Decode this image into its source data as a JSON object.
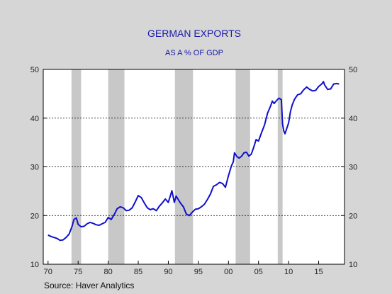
{
  "chart_data": {
    "type": "line",
    "title": "GERMAN EXPORTS",
    "subtitle": "AS A % OF GDP",
    "source": "Source: Haver Analytics",
    "x_range": [
      1970,
      2017.5
    ],
    "ylim": [
      10,
      50
    ],
    "y_ticks": [
      10,
      20,
      30,
      40,
      50
    ],
    "x_tick_values": [
      1970,
      1975,
      1980,
      1985,
      1990,
      1995,
      2000,
      2005,
      2010,
      2015
    ],
    "x_tick_labels": [
      "70",
      "75",
      "80",
      "85",
      "90",
      "95",
      "00",
      "05",
      "10",
      "15"
    ],
    "gridlines_at": [
      20,
      30,
      40
    ],
    "grid_style": "dotted-horizontal",
    "right_axis_mirrors_left": true,
    "recessions": [
      [
        1973.9,
        1975.5
      ],
      [
        1980.0,
        1982.7
      ],
      [
        1991.1,
        1994.1
      ],
      [
        2001.2,
        2003.6
      ],
      [
        2008.2,
        2009.0
      ]
    ],
    "series": [
      {
        "color": "#1010cc",
        "points": [
          [
            1970.0,
            16.0
          ],
          [
            1970.5,
            15.7
          ],
          [
            1971.0,
            15.5
          ],
          [
            1971.5,
            15.3
          ],
          [
            1972.0,
            14.9
          ],
          [
            1972.5,
            15.0
          ],
          [
            1973.0,
            15.5
          ],
          [
            1973.5,
            16.2
          ],
          [
            1974.0,
            17.8
          ],
          [
            1974.3,
            19.2
          ],
          [
            1974.7,
            19.5
          ],
          [
            1975.0,
            18.2
          ],
          [
            1975.5,
            17.7
          ],
          [
            1976.0,
            17.8
          ],
          [
            1976.5,
            18.3
          ],
          [
            1977.0,
            18.6
          ],
          [
            1977.5,
            18.4
          ],
          [
            1978.0,
            18.1
          ],
          [
            1978.5,
            18.0
          ],
          [
            1979.0,
            18.3
          ],
          [
            1979.5,
            18.6
          ],
          [
            1980.0,
            19.6
          ],
          [
            1980.5,
            19.2
          ],
          [
            1981.0,
            20.2
          ],
          [
            1981.5,
            21.4
          ],
          [
            1982.0,
            21.8
          ],
          [
            1982.5,
            21.6
          ],
          [
            1983.0,
            21.0
          ],
          [
            1983.5,
            21.1
          ],
          [
            1984.0,
            21.6
          ],
          [
            1984.5,
            22.8
          ],
          [
            1985.0,
            24.1
          ],
          [
            1985.5,
            23.7
          ],
          [
            1986.0,
            22.6
          ],
          [
            1986.5,
            21.6
          ],
          [
            1987.0,
            21.2
          ],
          [
            1987.5,
            21.4
          ],
          [
            1988.0,
            21.0
          ],
          [
            1988.5,
            21.9
          ],
          [
            1989.0,
            22.6
          ],
          [
            1989.5,
            23.4
          ],
          [
            1990.0,
            22.7
          ],
          [
            1990.3,
            23.9
          ],
          [
            1990.6,
            25.1
          ],
          [
            1991.0,
            22.7
          ],
          [
            1991.3,
            24.0
          ],
          [
            1991.6,
            23.4
          ],
          [
            1992.0,
            22.6
          ],
          [
            1992.5,
            21.8
          ],
          [
            1993.0,
            20.3
          ],
          [
            1993.5,
            20.0
          ],
          [
            1994.0,
            20.7
          ],
          [
            1994.5,
            21.3
          ],
          [
            1995.0,
            21.4
          ],
          [
            1995.5,
            21.8
          ],
          [
            1996.0,
            22.3
          ],
          [
            1996.5,
            23.3
          ],
          [
            1997.0,
            24.4
          ],
          [
            1997.5,
            26.0
          ],
          [
            1998.0,
            26.3
          ],
          [
            1998.5,
            26.8
          ],
          [
            1999.0,
            26.6
          ],
          [
            1999.5,
            25.8
          ],
          [
            2000.0,
            28.2
          ],
          [
            2000.5,
            30.2
          ],
          [
            2000.8,
            31.0
          ],
          [
            2001.0,
            32.9
          ],
          [
            2001.4,
            32.1
          ],
          [
            2001.8,
            31.8
          ],
          [
            2002.2,
            32.2
          ],
          [
            2002.6,
            32.9
          ],
          [
            2003.0,
            33.0
          ],
          [
            2003.4,
            32.2
          ],
          [
            2003.8,
            32.6
          ],
          [
            2004.2,
            34.0
          ],
          [
            2004.6,
            35.6
          ],
          [
            2005.0,
            35.3
          ],
          [
            2005.5,
            37.0
          ],
          [
            2006.0,
            38.6
          ],
          [
            2006.5,
            41.0
          ],
          [
            2007.0,
            42.5
          ],
          [
            2007.3,
            43.5
          ],
          [
            2007.6,
            43.0
          ],
          [
            2008.0,
            43.6
          ],
          [
            2008.4,
            44.1
          ],
          [
            2008.8,
            43.8
          ],
          [
            2009.0,
            38.8
          ],
          [
            2009.2,
            37.4
          ],
          [
            2009.4,
            36.8
          ],
          [
            2009.7,
            37.9
          ],
          [
            2010.0,
            39.0
          ],
          [
            2010.3,
            41.3
          ],
          [
            2010.6,
            42.7
          ],
          [
            2011.0,
            43.9
          ],
          [
            2011.5,
            44.8
          ],
          [
            2012.0,
            45.0
          ],
          [
            2012.5,
            45.8
          ],
          [
            2013.0,
            46.4
          ],
          [
            2013.5,
            45.9
          ],
          [
            2014.0,
            45.6
          ],
          [
            2014.5,
            45.7
          ],
          [
            2015.0,
            46.5
          ],
          [
            2015.5,
            47.0
          ],
          [
            2015.8,
            47.5
          ],
          [
            2016.0,
            46.8
          ],
          [
            2016.5,
            45.9
          ],
          [
            2017.0,
            46.0
          ],
          [
            2017.5,
            47.0
          ],
          [
            2018.0,
            47.1
          ],
          [
            2018.4,
            47.0
          ]
        ]
      }
    ]
  }
}
